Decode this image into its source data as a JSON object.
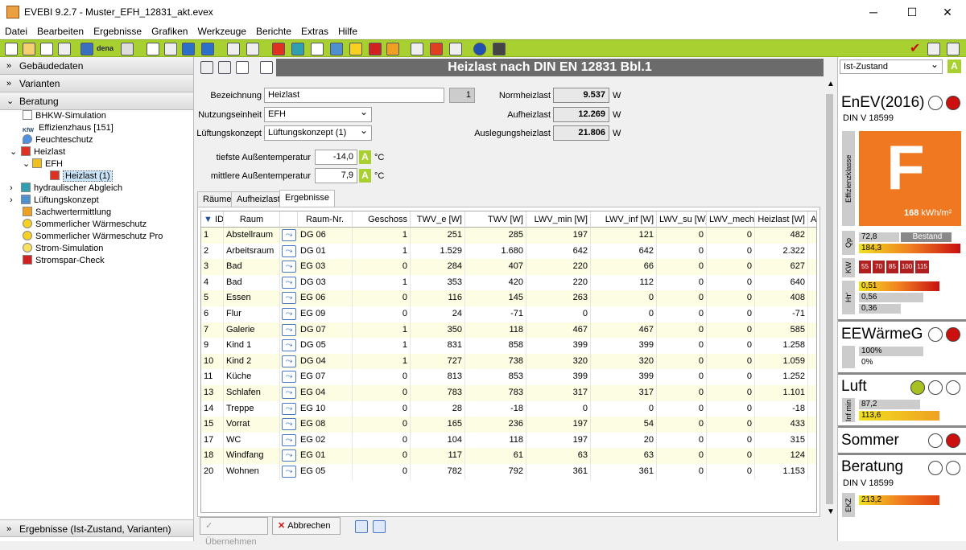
{
  "window": {
    "title": "EVEBI 9.2.7 - Muster_EFH_12831_akt.evex"
  },
  "menu": [
    "Datei",
    "Bearbeiten",
    "Ergebnisse",
    "Grafiken",
    "Werkzeuge",
    "Berichte",
    "Extras",
    "Hilfe"
  ],
  "toolbar": {
    "dena_label": "dena"
  },
  "left": {
    "sections": {
      "gebaeude": "Gebäudedaten",
      "varianten": "Varianten",
      "beratung": "Beratung",
      "ergebnisse": "Ergebnisse (Ist-Zustand, Varianten)"
    },
    "tree": [
      "BHKW-Simulation",
      "Effizienzhaus [151]",
      "Feuchteschutz",
      "Heizlast",
      "EFH",
      "Heizlast (1)",
      "hydraulischer Abgleich",
      "Lüftungskonzept",
      "Sachwertermittlung",
      "Sommerlicher Wärmeschutz",
      "Sommerlicher Wärmeschutz Pro",
      "Strom-Simulation",
      "Stromspar-Check"
    ]
  },
  "main": {
    "title": "Heizlast nach DIN EN 12831 Bbl.1",
    "form": {
      "bezeichnung_label": "Bezeichnung",
      "bezeichnung": "Heizlast",
      "index": "1",
      "nutzung_label": "Nutzungseinheit",
      "nutzung": "EFH",
      "lueftung_label": "Lüftungskonzept",
      "lueftung": "Lüftungskonzept (1)",
      "tiefste_label": "tiefste Außentemperatur",
      "tiefste": "-14,0",
      "tiefste_unit": "°C",
      "mittlere_label": "mittlere Außentemperatur",
      "mittlere": "7,9",
      "mittlere_unit": "°C",
      "a_label": "A",
      "norm_label": "Normheizlast",
      "norm": "9.537",
      "aufheiz_label": "Aufheizlast",
      "aufheiz": "12.269",
      "ausleg_label": "Auslegungsheizlast",
      "ausleg": "21.806",
      "unit_w": "W"
    },
    "tabs": [
      "Räume",
      "Aufheizlast",
      "Ergebnisse"
    ],
    "columns": [
      "ID",
      "Raum",
      "",
      "Raum-Nr.",
      "Geschoss",
      "TWV_e [W]",
      "TWV [W]",
      "LWV_min [W]",
      "LWV_inf [W]",
      "LWV_su [W]",
      "LWV_mech...",
      "Heizlast [W]",
      "A"
    ],
    "rows": [
      [
        "1",
        "Abstellraum",
        "DG 06",
        "1",
        "251",
        "285",
        "197",
        "121",
        "0",
        "0",
        "482"
      ],
      [
        "2",
        "Arbeitsraum",
        "DG 01",
        "1",
        "1.529",
        "1.680",
        "642",
        "642",
        "0",
        "0",
        "2.322"
      ],
      [
        "3",
        "Bad",
        "EG 03",
        "0",
        "284",
        "407",
        "220",
        "66",
        "0",
        "0",
        "627"
      ],
      [
        "4",
        "Bad",
        "DG 03",
        "1",
        "353",
        "420",
        "220",
        "112",
        "0",
        "0",
        "640"
      ],
      [
        "5",
        "Essen",
        "EG 06",
        "0",
        "116",
        "145",
        "263",
        "0",
        "0",
        "0",
        "408"
      ],
      [
        "6",
        "Flur",
        "EG 09",
        "0",
        "24",
        "-71",
        "0",
        "0",
        "0",
        "0",
        "-71"
      ],
      [
        "7",
        "Galerie",
        "DG 07",
        "1",
        "350",
        "118",
        "467",
        "467",
        "0",
        "0",
        "585"
      ],
      [
        "9",
        "Kind 1",
        "DG 05",
        "1",
        "831",
        "858",
        "399",
        "399",
        "0",
        "0",
        "1.258"
      ],
      [
        "10",
        "Kind 2",
        "DG 04",
        "1",
        "727",
        "738",
        "320",
        "320",
        "0",
        "0",
        "1.059"
      ],
      [
        "11",
        "Küche",
        "EG 07",
        "0",
        "813",
        "853",
        "399",
        "399",
        "0",
        "0",
        "1.252"
      ],
      [
        "13",
        "Schlafen",
        "EG 04",
        "0",
        "783",
        "783",
        "317",
        "317",
        "0",
        "0",
        "1.101"
      ],
      [
        "14",
        "Treppe",
        "EG 10",
        "0",
        "28",
        "-18",
        "0",
        "0",
        "0",
        "0",
        "-18"
      ],
      [
        "15",
        "Vorrat",
        "EG 08",
        "0",
        "165",
        "236",
        "197",
        "54",
        "0",
        "0",
        "433"
      ],
      [
        "17",
        "WC",
        "EG 02",
        "0",
        "104",
        "118",
        "197",
        "20",
        "0",
        "0",
        "315"
      ],
      [
        "18",
        "Windfang",
        "EG 01",
        "0",
        "117",
        "61",
        "63",
        "63",
        "0",
        "0",
        "124"
      ],
      [
        "20",
        "Wohnen",
        "EG 05",
        "0",
        "782",
        "792",
        "361",
        "361",
        "0",
        "0",
        "1.153"
      ]
    ],
    "buttons": {
      "uebernehmen": "Übernehmen",
      "abbrechen": "Abbrechen"
    }
  },
  "right": {
    "state": "Ist-Zustand",
    "a_label": "A",
    "enev": {
      "title": "EnEV(2016)",
      "norm": "DIN V 18599",
      "eff_label": "Effizienzklasse",
      "class": "F",
      "value": "168",
      "unit": "kWh/m²",
      "qp_label": "Qp",
      "qp_bestand": "72,8",
      "bestand_label": "Bestand",
      "qp_val": "184,3",
      "kw_label": "KW",
      "kw": [
        "55",
        "70",
        "85",
        "100",
        "115"
      ],
      "ht_label": "Hт'",
      "ht": [
        "0,51",
        "0,56",
        "0,36"
      ]
    },
    "ewg": {
      "title": "EEWärmeG",
      "v1": "100%",
      "v2": "0%"
    },
    "luft": {
      "title": "Luft",
      "label": "Inf min",
      "v1": "87,2",
      "v2": "113,6"
    },
    "sommer": {
      "title": "Sommer"
    },
    "beratung": {
      "title": "Beratung",
      "norm": "DIN V 18599",
      "ekz_label": "EKZ",
      "ekz": "213,2"
    }
  },
  "colors": {
    "accent_green": "#a8d030",
    "title_gray": "#6b6b6b",
    "class_orange": "#f07820",
    "row_yellow": "#fdfde4",
    "status_red": "#cc1010"
  }
}
